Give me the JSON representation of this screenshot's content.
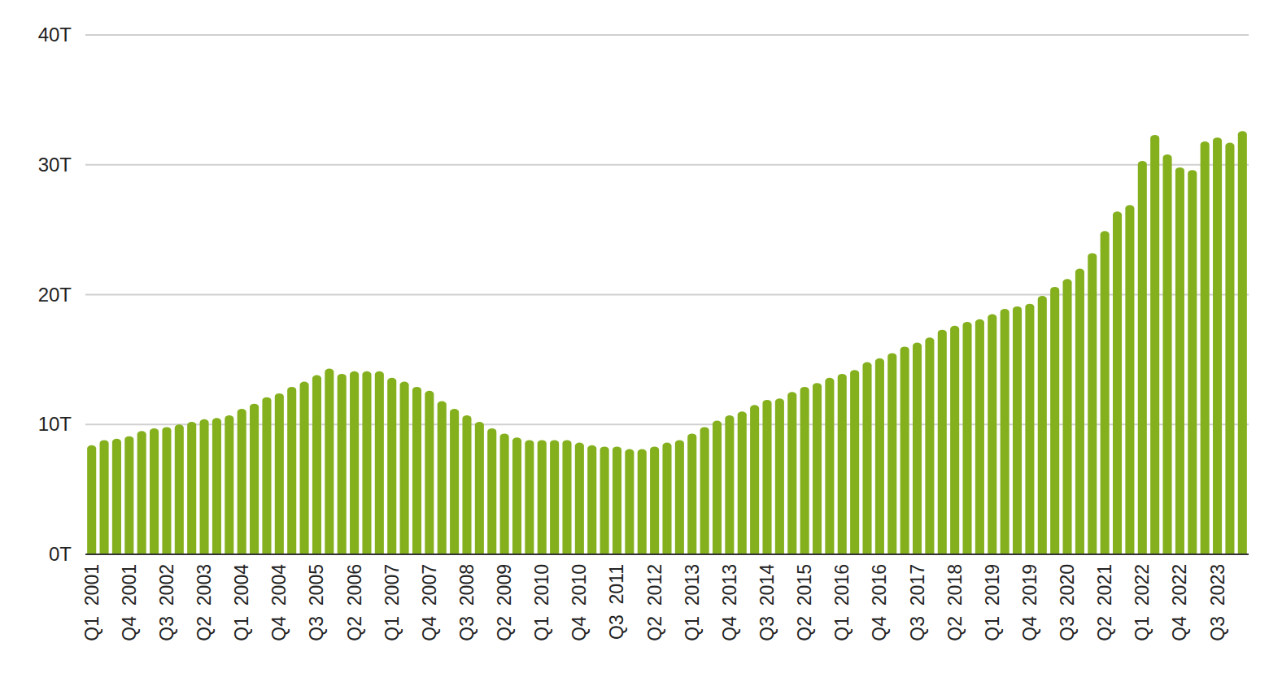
{
  "chart_data": {
    "type": "bar",
    "categories": [
      "Q1  2001",
      null,
      null,
      "Q4  2001",
      null,
      null,
      "Q3  2002",
      null,
      null,
      "Q2  2003",
      null,
      null,
      "Q1  2004",
      null,
      null,
      "Q4  2004",
      null,
      null,
      "Q3  2005",
      null,
      null,
      "Q2  2006",
      null,
      null,
      "Q1  2007",
      null,
      null,
      "Q4  2007",
      null,
      null,
      "Q3  2008",
      null,
      null,
      "Q2  2009",
      null,
      null,
      "Q1  2010",
      null,
      null,
      "Q4  2010",
      null,
      null,
      "Q3  2011",
      null,
      null,
      "Q2  2012",
      null,
      null,
      "Q1  2013",
      null,
      null,
      "Q4  2013",
      null,
      null,
      "Q3  2014",
      null,
      null,
      "Q2  2015",
      null,
      null,
      "Q1  2016",
      null,
      null,
      "Q4  2016",
      null,
      null,
      "Q3  2017",
      null,
      null,
      "Q2  2018",
      null,
      null,
      "Q1  2019",
      null,
      null,
      "Q4  2019",
      null,
      null,
      "Q3  2020",
      null,
      null,
      "Q2  2021",
      null,
      null,
      "Q1  2022",
      null,
      null,
      "Q4  2022",
      null,
      null,
      "Q3  2023",
      null,
      null
    ],
    "values": [
      8.4,
      8.8,
      8.9,
      9.1,
      9.5,
      9.7,
      9.8,
      10.0,
      10.2,
      10.4,
      10.5,
      10.7,
      11.2,
      11.6,
      12.1,
      12.4,
      12.9,
      13.3,
      13.8,
      14.3,
      13.9,
      14.1,
      14.1,
      14.1,
      13.6,
      13.3,
      12.9,
      12.6,
      11.8,
      11.2,
      10.7,
      10.2,
      9.7,
      9.3,
      9.0,
      8.8,
      8.8,
      8.8,
      8.8,
      8.6,
      8.4,
      8.3,
      8.3,
      8.1,
      8.1,
      8.3,
      8.6,
      8.8,
      9.3,
      9.8,
      10.3,
      10.7,
      11.0,
      11.5,
      11.9,
      12.0,
      12.5,
      12.9,
      13.2,
      13.6,
      13.9,
      14.2,
      14.8,
      15.1,
      15.5,
      16.0,
      16.3,
      16.7,
      17.3,
      17.6,
      17.9,
      18.1,
      18.5,
      18.9,
      19.1,
      19.3,
      19.9,
      20.6,
      21.2,
      22.0,
      23.2,
      24.9,
      26.4,
      26.9,
      30.3,
      32.3,
      30.8,
      29.8,
      29.6,
      31.8,
      32.1,
      31.7,
      32.6
    ],
    "color": "#84b01e",
    "ylim": [
      0,
      40
    ],
    "yticks": [
      {
        "value": 0,
        "label": "0T"
      },
      {
        "value": 10,
        "label": "10T"
      },
      {
        "value": 20,
        "label": "20T"
      },
      {
        "value": 30,
        "label": "30T"
      },
      {
        "value": 40,
        "label": "40T"
      }
    ],
    "grid": true
  }
}
